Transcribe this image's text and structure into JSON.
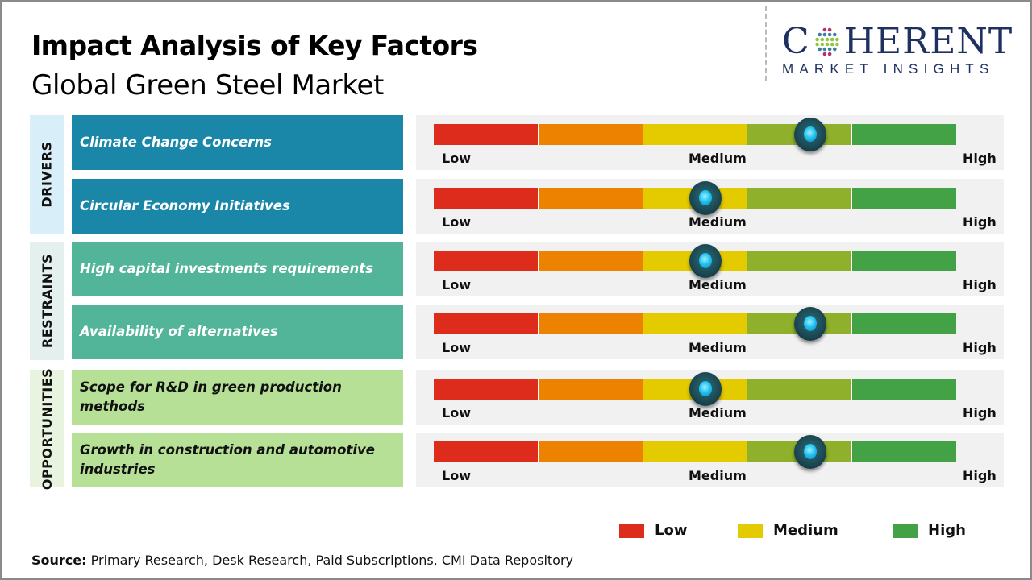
{
  "header": {
    "title": "Impact Analysis of Key Factors",
    "subtitle": "Global Green Steel Market"
  },
  "logo": {
    "brand_left": "C",
    "brand_right": "HERENT",
    "tagline": "MARKET INSIGHTS"
  },
  "colors": {
    "drivers_label_bg": "#d8eef8",
    "drivers_bg": "#1a87a9",
    "restraints_label_bg": "#e3f0ee",
    "restraints_bg": "#52b59a",
    "opportunities_label_bg": "#e8f4df",
    "opportunities_bg": "#b6e095",
    "scale": [
      "#dd2c1c",
      "#ec8200",
      "#e3cb00",
      "#8fb02a",
      "#43a246"
    ]
  },
  "chart_data": {
    "type": "gauge-table",
    "title": "Impact Analysis of Key Factors",
    "subtitle": "Global Green Steel Market",
    "scale_labels": [
      "Low",
      "Medium",
      "High"
    ],
    "scale_range": [
      0,
      100
    ],
    "categories": [
      {
        "name": "DRIVERS",
        "factors": [
          {
            "label": "Climate Change Concerns",
            "impact": 72,
            "level": "Medium-High"
          },
          {
            "label": "Circular Economy Initiatives",
            "impact": 52,
            "level": "Medium"
          }
        ]
      },
      {
        "name": "RESTRAINTS",
        "factors": [
          {
            "label": "High capital investments requirements",
            "impact": 52,
            "level": "Medium"
          },
          {
            "label": "Availability of alternatives",
            "impact": 72,
            "level": "Medium-High"
          }
        ]
      },
      {
        "name": "OPPORTUNITIES",
        "factors": [
          {
            "label": "Scope for R&D in green production methods",
            "impact": 52,
            "level": "Medium"
          },
          {
            "label": "Growth in construction and automotive industries",
            "impact": 72,
            "level": "Medium-High"
          }
        ]
      }
    ],
    "legend": [
      {
        "label": "Low",
        "color": "#dd2c1c"
      },
      {
        "label": "Medium",
        "color": "#e3cb00"
      },
      {
        "label": "High",
        "color": "#43a246"
      }
    ]
  },
  "footer": {
    "source_label": "Source:",
    "source_text": " Primary Research, Desk Research, Paid Subscriptions, CMI Data Repository"
  }
}
